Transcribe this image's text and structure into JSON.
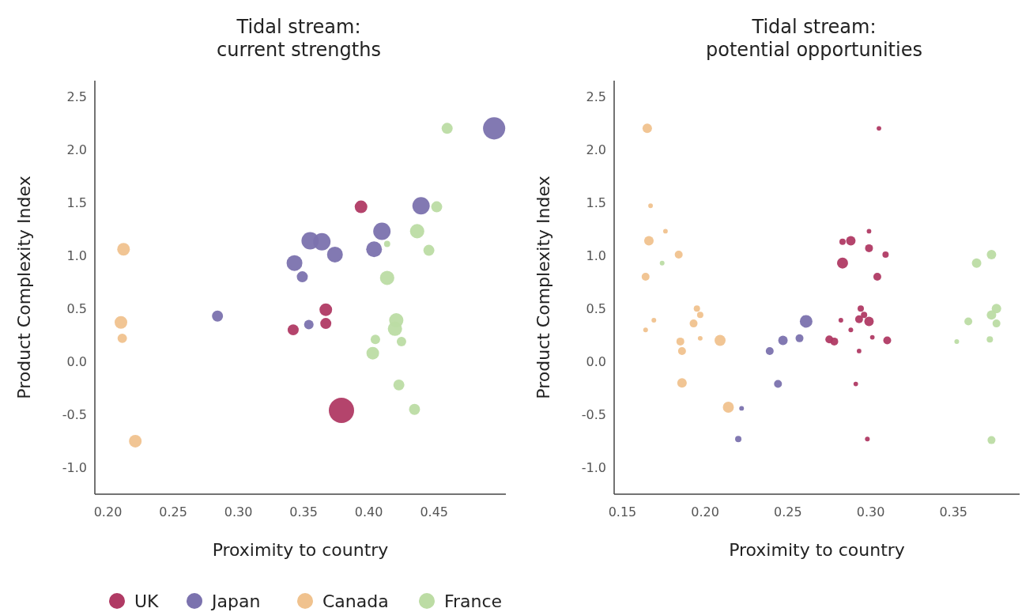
{
  "chart_data": [
    {
      "type": "bubble",
      "title": "Tidal stream:\ncurrent strengths",
      "xlabel": "Proximity to country",
      "ylabel": "Product Complexity Index",
      "xlim": [
        0.19,
        0.505
      ],
      "xticks": [
        {
          "value": 0.2,
          "label": "0.20"
        },
        {
          "value": 0.25,
          "label": "0.25"
        },
        {
          "value": 0.3,
          "label": "0.30"
        },
        {
          "value": 0.35,
          "label": "0.35"
        },
        {
          "value": 0.4,
          "label": "0.40"
        },
        {
          "value": 0.45,
          "label": "0.45"
        }
      ],
      "ylim": [
        -1.25,
        2.65
      ],
      "yticks": [
        {
          "value": -1,
          "label": "-1.0"
        },
        {
          "value": -0.5,
          "label": "-0.5"
        },
        {
          "value": 0,
          "label": "0.0"
        },
        {
          "value": 0.5,
          "label": "0.5"
        },
        {
          "value": 1,
          "label": "1.0"
        },
        {
          "value": 1.5,
          "label": "1.5"
        },
        {
          "value": 2,
          "label": "2.0"
        },
        {
          "value": 2.5,
          "label": "2.5"
        }
      ],
      "grid": false,
      "legend": "bottom",
      "series": [
        {
          "name": "UK",
          "color": "#b03a64",
          "x": [
            0.394,
            0.367,
            0.367,
            0.342,
            0.379
          ],
          "values": [
            1.46,
            0.49,
            0.36,
            0.3,
            -0.46
          ],
          "sizes": [
            0.25,
            0.25,
            0.19,
            0.19,
            1
          ]
        },
        {
          "name": "Japan",
          "color": "#7b72ae",
          "x": [
            0.496,
            0.44,
            0.41,
            0.404,
            0.355,
            0.364,
            0.374,
            0.343,
            0.349,
            0.354,
            0.284
          ],
          "values": [
            2.2,
            1.47,
            1.23,
            1.06,
            1.14,
            1.13,
            1.01,
            0.93,
            0.8,
            0.35,
            0.43
          ],
          "sizes": [
            0.77,
            0.47,
            0.47,
            0.39,
            0.47,
            0.47,
            0.39,
            0.39,
            0.19,
            0.14,
            0.19
          ]
        },
        {
          "name": "Canada",
          "color": "#f0c28e",
          "x": [
            0.212,
            0.21,
            0.211,
            0.221
          ],
          "values": [
            1.06,
            0.37,
            0.22,
            -0.75
          ],
          "sizes": [
            0.25,
            0.25,
            0.14,
            0.25
          ]
        },
        {
          "name": "France",
          "color": "#bcdca4",
          "x": [
            0.46,
            0.452,
            0.437,
            0.446,
            0.414,
            0.414,
            0.421,
            0.42,
            0.405,
            0.403,
            0.425,
            0.423,
            0.435
          ],
          "values": [
            2.2,
            1.46,
            1.23,
            1.05,
            0.79,
            1.11,
            0.39,
            0.31,
            0.21,
            0.08,
            0.19,
            -0.22,
            -0.45
          ],
          "sizes": [
            0.19,
            0.19,
            0.32,
            0.19,
            0.32,
            0.06,
            0.32,
            0.32,
            0.14,
            0.25,
            0.14,
            0.19,
            0.19
          ]
        }
      ]
    },
    {
      "type": "bubble",
      "title": "Tidal stream:\npotential opportunities",
      "xlabel": "Proximity to country",
      "ylabel": "Product Complexity Index",
      "xlim": [
        0.145,
        0.39
      ],
      "xticks": [
        {
          "value": 0.15,
          "label": "0.15"
        },
        {
          "value": 0.2,
          "label": "0.20"
        },
        {
          "value": 0.25,
          "label": "0.25"
        },
        {
          "value": 0.3,
          "label": "0.30"
        },
        {
          "value": 0.35,
          "label": "0.35"
        }
      ],
      "ylim": [
        -1.25,
        2.65
      ],
      "yticks": [
        {
          "value": -1,
          "label": "-1.0"
        },
        {
          "value": -0.5,
          "label": "-0.5"
        },
        {
          "value": 0,
          "label": "0.0"
        },
        {
          "value": 0.5,
          "label": "0.5"
        },
        {
          "value": 1,
          "label": "1.0"
        },
        {
          "value": 1.5,
          "label": "1.5"
        },
        {
          "value": 2,
          "label": "2.0"
        },
        {
          "value": 2.5,
          "label": "2.5"
        }
      ],
      "grid": false,
      "series": [
        {
          "color": "#b03a64",
          "x": [
            0.305,
            0.299,
            0.288,
            0.283,
            0.299,
            0.309,
            0.283,
            0.304,
            0.282,
            0.301,
            0.31,
            0.293,
            0.291,
            0.298,
            0.294,
            0.296,
            0.293,
            0.299,
            0.275,
            0.278,
            0.288
          ],
          "values": [
            2.2,
            1.23,
            1.14,
            1.13,
            1.07,
            1.01,
            0.93,
            0.8,
            0.39,
            0.23,
            0.2,
            0.1,
            -0.21,
            -0.73,
            0.5,
            0.44,
            0.4,
            0.38,
            0.21,
            0.19,
            0.3
          ],
          "sizes": [
            0.13,
            0.13,
            0.56,
            0.25,
            0.39,
            0.25,
            0.76,
            0.39,
            0.14,
            0.13,
            0.39,
            0.13,
            0.13,
            0.14,
            0.25,
            0.25,
            0.39,
            0.56,
            0.39,
            0.39,
            0.14
          ]
        },
        {
          "color": "#7b72ae",
          "x": [
            0.261,
            0.247,
            0.257,
            0.239,
            0.244,
            0.222,
            0.22
          ],
          "values": [
            0.38,
            0.2,
            0.22,
            0.1,
            -0.21,
            -0.44,
            -0.73
          ],
          "sizes": [
            1,
            0.56,
            0.39,
            0.39,
            0.39,
            0.14,
            0.25
          ]
        },
        {
          "color": "#f0c28e",
          "x": [
            0.165,
            0.167,
            0.176,
            0.166,
            0.184,
            0.164,
            0.169,
            0.164,
            0.195,
            0.197,
            0.193,
            0.197,
            0.185,
            0.186,
            0.209,
            0.186,
            0.214
          ],
          "values": [
            2.2,
            1.47,
            1.23,
            1.14,
            1.01,
            0.8,
            0.39,
            0.3,
            0.5,
            0.44,
            0.36,
            0.22,
            0.19,
            0.1,
            0.2,
            -0.2,
            -0.43
          ],
          "sizes": [
            0.56,
            0.13,
            0.13,
            0.56,
            0.39,
            0.39,
            0.14,
            0.14,
            0.25,
            0.25,
            0.39,
            0.14,
            0.39,
            0.39,
            0.76,
            0.56,
            0.76
          ]
        },
        {
          "color": "#bcdca4",
          "x": [
            0.373,
            0.364,
            0.376,
            0.373,
            0.376,
            0.359,
            0.372,
            0.352,
            0.373,
            0.174
          ],
          "values": [
            1.01,
            0.93,
            0.5,
            0.44,
            0.36,
            0.38,
            0.21,
            0.19,
            -0.74,
            0.93
          ],
          "sizes": [
            0.56,
            0.56,
            0.56,
            0.56,
            0.39,
            0.39,
            0.25,
            0.14,
            0.39,
            0.14
          ]
        }
      ]
    }
  ]
}
